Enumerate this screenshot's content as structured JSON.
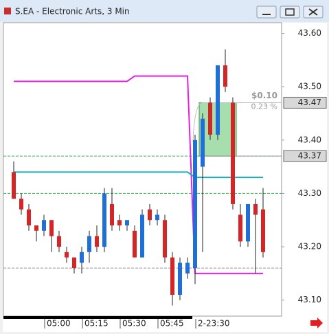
{
  "window_title": "S.EA - Electronic Arts, 3 Min",
  "chart_data": {
    "type": "candlestick",
    "categories": [
      null,
      null,
      null,
      null,
      "05:00",
      null,
      null,
      null,
      null,
      "05:15",
      null,
      null,
      null,
      null,
      "05:30",
      null,
      null,
      null,
      null,
      "05:45",
      null,
      null,
      null,
      null,
      "2-23:30",
      null,
      null,
      null,
      null,
      null,
      null,
      null,
      null,
      null
    ],
    "open": [
      43.34,
      43.29,
      43.27,
      43.24,
      43.23,
      43.25,
      43.22,
      43.19,
      43.18,
      43.17,
      43.19,
      43.22,
      43.2,
      43.28,
      43.25,
      43.24,
      43.23,
      43.18,
      43.27,
      43.25,
      43.25,
      43.18,
      43.11,
      43.15,
      43.16,
      43.35,
      43.47,
      43.41,
      43.54,
      43.47,
      43.26,
      43.21,
      43.28,
      43.27
    ],
    "high": [
      43.36,
      43.3,
      43.28,
      43.24,
      43.26,
      43.25,
      43.23,
      43.2,
      43.18,
      43.2,
      43.23,
      43.24,
      43.31,
      43.31,
      43.26,
      43.25,
      43.24,
      43.27,
      43.28,
      43.27,
      43.26,
      43.19,
      43.18,
      43.18,
      43.41,
      43.45,
      43.48,
      43.54,
      43.57,
      43.48,
      43.28,
      43.28,
      43.29,
      43.31
    ],
    "low": [
      43.29,
      43.26,
      43.23,
      43.21,
      43.22,
      43.19,
      43.19,
      43.17,
      43.15,
      43.15,
      43.17,
      43.19,
      43.19,
      43.23,
      43.23,
      43.23,
      43.18,
      43.18,
      43.24,
      43.24,
      43.17,
      43.09,
      43.1,
      43.14,
      43.13,
      43.19,
      43.4,
      43.4,
      43.49,
      43.27,
      43.2,
      43.2,
      43.15,
      43.18
    ],
    "close": [
      43.29,
      43.27,
      43.24,
      43.23,
      43.25,
      43.22,
      43.2,
      43.18,
      43.16,
      43.19,
      43.22,
      43.2,
      43.3,
      43.24,
      43.24,
      43.25,
      43.18,
      43.26,
      43.25,
      43.26,
      43.18,
      43.11,
      43.17,
      43.17,
      43.4,
      43.44,
      43.41,
      43.54,
      43.5,
      43.28,
      43.21,
      43.28,
      43.26,
      43.19
    ],
    "up_color": "#1f6fd6",
    "down_color": "#d42626",
    "lines": [
      {
        "color": "#e61ee6",
        "values": [
          43.51,
          43.51,
          43.51,
          43.51,
          43.51,
          43.51,
          43.51,
          43.51,
          43.51,
          43.51,
          43.51,
          43.51,
          43.51,
          43.51,
          43.51,
          43.51,
          43.52,
          43.52,
          43.52,
          43.52,
          43.52,
          43.52,
          43.52,
          43.52,
          43.15,
          43.15,
          43.15,
          43.15,
          43.15,
          43.15,
          43.15,
          43.15,
          43.15,
          43.15
        ]
      },
      {
        "color": "#18b0b8",
        "values": [
          43.34,
          43.34,
          43.34,
          43.34,
          43.34,
          43.34,
          43.34,
          43.34,
          43.34,
          43.34,
          43.34,
          43.34,
          43.34,
          43.34,
          43.34,
          43.34,
          43.34,
          43.34,
          43.34,
          43.34,
          43.34,
          43.34,
          43.34,
          43.34,
          43.33,
          43.33,
          43.33,
          43.33,
          43.33,
          43.33,
          43.33,
          43.33,
          43.33,
          43.33
        ]
      }
    ],
    "levels": [
      {
        "value": 43.37,
        "color": "#2db84a"
      },
      {
        "value": 43.3,
        "color": "#2db84a"
      },
      {
        "value": 43.16,
        "color": "#999999"
      }
    ],
    "trade": {
      "entry": [
        null,
        null,
        null,
        null,
        null,
        null,
        null,
        null,
        null,
        null,
        null,
        null,
        null,
        null,
        null,
        null,
        null,
        null,
        null,
        null,
        null,
        null,
        null,
        null,
        null,
        43.47,
        43.47,
        43.47,
        43.47,
        43.47,
        null,
        null,
        null,
        null
      ],
      "exit": [
        null,
        null,
        null,
        null,
        null,
        null,
        null,
        null,
        null,
        null,
        null,
        null,
        null,
        null,
        null,
        null,
        null,
        null,
        null,
        null,
        null,
        null,
        null,
        null,
        null,
        43.37,
        43.37,
        43.37,
        43.37,
        43.37,
        null,
        null,
        null,
        null
      ],
      "color": "#5cc46a",
      "profit": "$0.10",
      "percent": "0.23 %"
    },
    "price_tags": [
      43.47,
      43.37
    ],
    "ylim": [
      43.07,
      43.62
    ],
    "yticks": [
      {
        "value": 43.1,
        "label": "43.10"
      },
      {
        "value": 43.2,
        "label": "43.20"
      },
      {
        "value": 43.3,
        "label": "43.30"
      },
      {
        "value": 43.4,
        "label": "43.40"
      },
      {
        "value": 43.5,
        "label": "43.50"
      },
      {
        "value": 43.6,
        "label": "43.60"
      }
    ]
  }
}
